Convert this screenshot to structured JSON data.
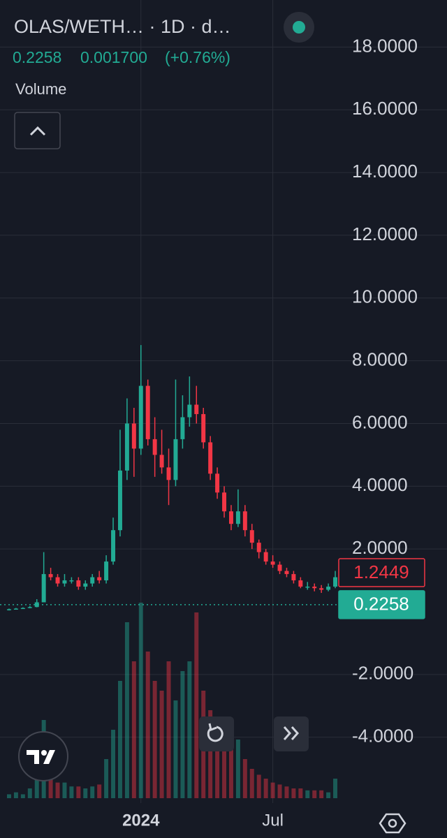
{
  "chart_data": {
    "type": "candlestick",
    "title": "OLAS/WETH… · 1D · d…",
    "header_values": [
      "0.2258",
      "0.001700",
      "(+0.76%)"
    ],
    "volume_label": "Volume",
    "categories": [
      null,
      null,
      null,
      null,
      null,
      null,
      null,
      null,
      null,
      null,
      null,
      null,
      null,
      null,
      null,
      null,
      null,
      null,
      null,
      "2024",
      null,
      null,
      null,
      null,
      null,
      null,
      null,
      null,
      null,
      null,
      null,
      null,
      null,
      null,
      null,
      null,
      null,
      null,
      "Jul",
      null,
      null,
      null,
      null,
      null,
      null,
      null,
      null,
      null
    ],
    "open": [
      0.06,
      0.08,
      0.1,
      0.12,
      0.15,
      0.3,
      1.2,
      1.1,
      0.9,
      1.0,
      1.0,
      0.8,
      0.9,
      1.1,
      1.0,
      1.6,
      2.6,
      4.5,
      6.0,
      5.2,
      7.2,
      5.5,
      5.0,
      4.6,
      4.2,
      5.5,
      6.2,
      6.6,
      6.3,
      5.4,
      4.4,
      3.8,
      3.2,
      2.8,
      3.2,
      2.6,
      2.2,
      1.9,
      1.6,
      1.5,
      1.3,
      1.2,
      1.0,
      0.8,
      0.8,
      0.75,
      0.7,
      0.8
    ],
    "high": [
      0.1,
      0.12,
      0.14,
      0.18,
      0.4,
      1.9,
      1.4,
      1.2,
      1.2,
      1.1,
      1.1,
      1.0,
      1.2,
      1.3,
      1.8,
      3.0,
      5.8,
      6.8,
      6.5,
      8.5,
      7.4,
      6.2,
      5.8,
      5.2,
      7.4,
      6.9,
      7.5,
      7.2,
      6.5,
      5.6,
      4.6,
      4.0,
      3.4,
      3.9,
      3.4,
      2.8,
      2.3,
      2.0,
      1.8,
      1.6,
      1.4,
      1.3,
      1.1,
      0.95,
      0.9,
      0.85,
      0.9,
      1.3
    ],
    "low": [
      0.04,
      0.07,
      0.09,
      0.11,
      0.14,
      0.3,
      1.0,
      0.8,
      0.8,
      0.9,
      0.7,
      0.7,
      0.8,
      0.9,
      0.9,
      1.5,
      2.4,
      4.2,
      4.3,
      5.0,
      5.3,
      4.3,
      4.4,
      3.4,
      4.0,
      5.2,
      5.9,
      6.0,
      5.2,
      4.2,
      3.6,
      3.0,
      2.6,
      2.7,
      2.4,
      2.0,
      1.7,
      1.5,
      1.4,
      1.2,
      1.1,
      0.9,
      0.75,
      0.7,
      0.65,
      0.6,
      0.65,
      0.75
    ],
    "close": [
      0.08,
      0.1,
      0.12,
      0.15,
      0.3,
      1.2,
      1.1,
      0.9,
      1.0,
      1.0,
      0.8,
      0.9,
      1.1,
      1.0,
      1.6,
      2.6,
      4.5,
      6.0,
      5.2,
      7.2,
      5.5,
      5.0,
      4.6,
      4.2,
      5.5,
      6.2,
      6.6,
      6.3,
      5.4,
      4.4,
      3.8,
      3.2,
      2.8,
      3.2,
      2.6,
      2.2,
      1.9,
      1.6,
      1.5,
      1.3,
      1.2,
      1.0,
      0.8,
      0.8,
      0.75,
      0.7,
      0.8,
      1.1
    ],
    "volume": [
      2,
      3,
      2,
      5,
      10,
      40,
      15,
      8,
      8,
      6,
      6,
      5,
      6,
      7,
      20,
      35,
      60,
      90,
      70,
      100,
      75,
      60,
      55,
      70,
      50,
      65,
      70,
      95,
      55,
      45,
      40,
      30,
      25,
      30,
      20,
      15,
      12,
      10,
      8,
      7,
      6,
      5,
      5,
      4,
      4,
      4,
      3,
      10
    ],
    "up_color": "#22ab94",
    "down_color": "#f23645",
    "ylim": [
      -6.1,
      19.5
    ],
    "yticks": [
      {
        "value": 18,
        "label": "18.0000"
      },
      {
        "value": 16,
        "label": "16.0000"
      },
      {
        "value": 14,
        "label": "14.0000"
      },
      {
        "value": 12,
        "label": "12.0000"
      },
      {
        "value": 10,
        "label": "10.0000"
      },
      {
        "value": 8,
        "label": "8.0000"
      },
      {
        "value": 6,
        "label": "6.0000"
      },
      {
        "value": 4,
        "label": "4.0000"
      },
      {
        "value": 2,
        "label": "2.0000"
      },
      {
        "value": -2,
        "label": "-2.0000"
      },
      {
        "value": -4,
        "label": "-4.0000"
      }
    ],
    "grid": true,
    "price_lines": [
      {
        "value": 1.2449,
        "label": "1.2449",
        "color": "#f23645",
        "style": "outline"
      },
      {
        "value": 0.2258,
        "label": "0.2258",
        "color": "#22ab94",
        "style": "filled"
      }
    ]
  }
}
